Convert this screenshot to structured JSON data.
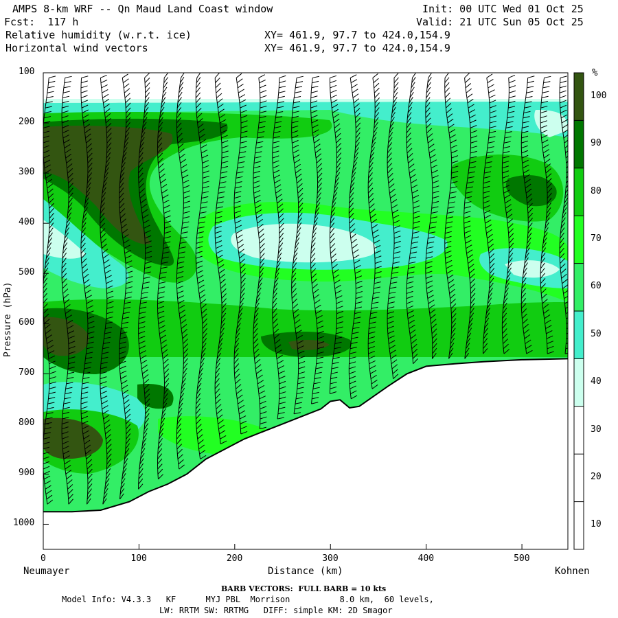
{
  "header": {
    "title": "AMPS 8-km WRF -- Qn Maud Land Coast window",
    "fcst": "Fcst:  117 h",
    "field1": "Relative humidity (w.r.t. ice)",
    "field2": "Horizontal wind vectors",
    "init": "Init: 00 UTC Wed 01 Oct 25",
    "valid": "Valid: 21 UTC Sun 05 Oct 25",
    "xy1": "XY= 461.9, 97.7 to 424.0,154.9",
    "xy2": "XY= 461.9, 97.7 to 424.0,154.9"
  },
  "chart_data": {
    "type": "heatmap",
    "xlabel": "Distance (km)",
    "ylabel": "Pressure (hPa)",
    "x_start_label": "Neumayer",
    "x_end_label": "Kohnen",
    "xlim": [
      0,
      548
    ],
    "ylim": [
      1050,
      100
    ],
    "x_ticks": [
      "0",
      "100",
      "200",
      "300",
      "400",
      "500"
    ],
    "y_ticks": [
      "100",
      "200",
      "300",
      "400",
      "500",
      "600",
      "700",
      "800",
      "900",
      "1000"
    ],
    "colorbar_unit": "%",
    "colorbar_ticks": [
      "10",
      "20",
      "30",
      "40",
      "50",
      "60",
      "70",
      "80",
      "90",
      "100"
    ],
    "colorbar_colors": [
      "#ffffff",
      "#ffffff",
      "#ffffff",
      "#ccffee",
      "#44eecc",
      "#33ee66",
      "#22ff22",
      "#11cc11",
      "#007700",
      "#335511"
    ],
    "terrain": {
      "distance_km": [
        0,
        30,
        60,
        90,
        110,
        130,
        150,
        170,
        190,
        210,
        230,
        250,
        270,
        290,
        300,
        310,
        320,
        330,
        345,
        360,
        380,
        400,
        430,
        460,
        500,
        548
      ],
      "surface_pressure_hpa": [
        975,
        975,
        972,
        955,
        935,
        920,
        900,
        870,
        850,
        830,
        815,
        800,
        785,
        770,
        755,
        752,
        768,
        765,
        745,
        725,
        700,
        685,
        680,
        676,
        672,
        670
      ]
    },
    "barb_note": "BARB VECTORS:  FULL BARB = 10 kts"
  },
  "footer": {
    "model_info": "Model Info: V4.3.3   KF      MYJ PBL  Morrison          8.0 km,  60 levels,",
    "physics": "LW: RRTM SW: RRTMG   DIFF: simple KM: 2D Smagor"
  }
}
